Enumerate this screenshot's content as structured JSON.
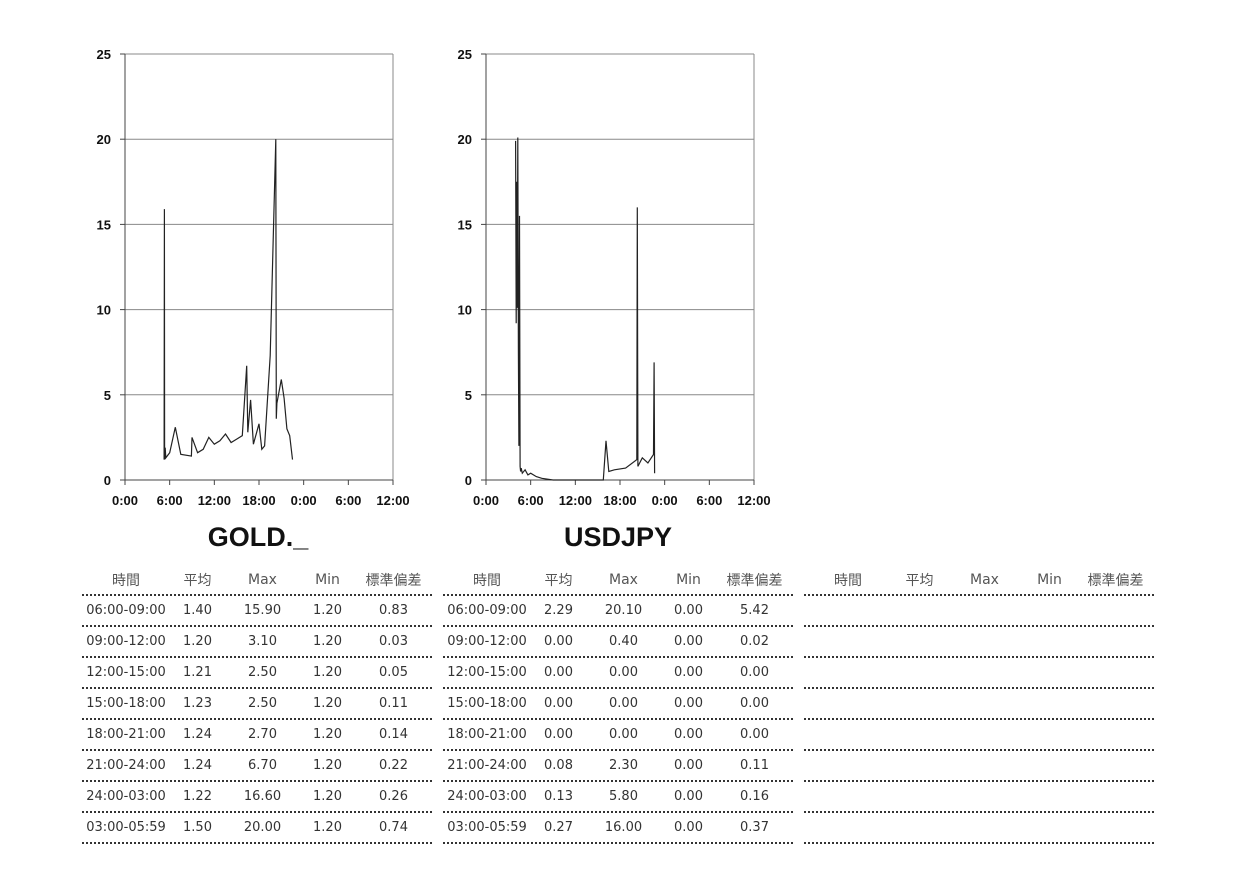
{
  "chart_data": [
    {
      "type": "line",
      "symbol": "GOLD._",
      "ylim": [
        0,
        25
      ],
      "yticks": [
        "0",
        "5",
        "10",
        "15",
        "20",
        "25"
      ],
      "xticks": [
        "0:00",
        "6:00",
        "12:00",
        "18:00",
        "0:00",
        "6:00",
        "12:00"
      ],
      "xlim_hours": [
        0,
        48
      ],
      "grid": true,
      "series": [
        {
          "x": [
            7.0,
            7.05,
            7.1,
            7.2,
            7.3,
            8.0,
            9.0,
            10.0,
            11.9,
            12.0,
            13.0,
            14.0,
            15.0,
            16.0,
            17.0,
            18.0,
            19.0,
            20.0,
            21.0,
            21.8,
            22.0,
            22.5,
            23.0,
            24.0,
            24.5,
            25.0,
            26.0,
            27.0,
            27.1,
            27.2,
            28.0,
            28.5,
            29.0,
            29.5,
            30.0
          ],
          "y": [
            1.2,
            15.9,
            1.2,
            1.9,
            1.3,
            1.6,
            3.1,
            1.5,
            1.4,
            2.5,
            1.6,
            1.8,
            2.5,
            2.1,
            2.3,
            2.7,
            2.2,
            2.4,
            2.6,
            6.7,
            2.8,
            4.7,
            2.1,
            3.3,
            1.8,
            2.0,
            7.3,
            20.0,
            3.6,
            4.5,
            5.9,
            4.8,
            3.0,
            2.6,
            1.2
          ]
        }
      ]
    },
    {
      "type": "line",
      "symbol": "USDJPY",
      "ylim": [
        0,
        25
      ],
      "yticks": [
        "0",
        "5",
        "10",
        "15",
        "20",
        "25"
      ],
      "xticks": [
        "0:00",
        "6:00",
        "12:00",
        "18:00",
        "0:00",
        "6:00",
        "12:00"
      ],
      "xlim_hours": [
        0,
        48
      ],
      "grid": true,
      "series": [
        {
          "x": [
            5.3,
            5.4,
            5.5,
            5.6,
            5.7,
            5.8,
            5.9,
            6.0,
            6.1,
            6.2,
            6.3,
            6.5,
            7.0,
            7.5,
            8.0,
            9.0,
            10.0,
            12.0,
            18.0,
            21.0,
            21.5,
            22.0,
            23.0,
            25.0,
            27.0,
            27.1,
            27.2,
            28.0,
            29.0,
            30.0,
            30.1,
            30.2
          ],
          "y": [
            19.9,
            9.2,
            17.5,
            10.1,
            20.1,
            7.5,
            2.0,
            15.5,
            0.8,
            0.5,
            0.7,
            0.4,
            0.6,
            0.3,
            0.4,
            0.2,
            0.1,
            0.0,
            0.0,
            0.0,
            2.3,
            0.5,
            0.6,
            0.7,
            1.2,
            16.0,
            0.8,
            1.3,
            1.0,
            1.5,
            6.9,
            0.4
          ]
        }
      ]
    }
  ],
  "tables": [
    {
      "headers": [
        "時間",
        "平均",
        "Max",
        "Min",
        "標準偏差"
      ],
      "rows": [
        [
          "06:00-09:00",
          "1.40",
          "15.90",
          "1.20",
          "0.83"
        ],
        [
          "09:00-12:00",
          "1.20",
          "3.10",
          "1.20",
          "0.03"
        ],
        [
          "12:00-15:00",
          "1.21",
          "2.50",
          "1.20",
          "0.05"
        ],
        [
          "15:00-18:00",
          "1.23",
          "2.50",
          "1.20",
          "0.11"
        ],
        [
          "18:00-21:00",
          "1.24",
          "2.70",
          "1.20",
          "0.14"
        ],
        [
          "21:00-24:00",
          "1.24",
          "6.70",
          "1.20",
          "0.22"
        ],
        [
          "24:00-03:00",
          "1.22",
          "16.60",
          "1.20",
          "0.26"
        ],
        [
          "03:00-05:59",
          "1.50",
          "20.00",
          "1.20",
          "0.74"
        ]
      ]
    },
    {
      "headers": [
        "時間",
        "平均",
        "Max",
        "Min",
        "標準偏差"
      ],
      "rows": [
        [
          "06:00-09:00",
          "2.29",
          "20.10",
          "0.00",
          "5.42"
        ],
        [
          "09:00-12:00",
          "0.00",
          "0.40",
          "0.00",
          "0.02"
        ],
        [
          "12:00-15:00",
          "0.00",
          "0.00",
          "0.00",
          "0.00"
        ],
        [
          "15:00-18:00",
          "0.00",
          "0.00",
          "0.00",
          "0.00"
        ],
        [
          "18:00-21:00",
          "0.00",
          "0.00",
          "0.00",
          "0.00"
        ],
        [
          "21:00-24:00",
          "0.08",
          "2.30",
          "0.00",
          "0.11"
        ],
        [
          "24:00-03:00",
          "0.13",
          "5.80",
          "0.00",
          "0.16"
        ],
        [
          "03:00-05:59",
          "0.27",
          "16.00",
          "0.00",
          "0.37"
        ]
      ]
    },
    {
      "headers": [
        "時間",
        "平均",
        "Max",
        "Min",
        "標準偏差"
      ],
      "rows": [
        [
          "",
          "",
          "",
          "",
          ""
        ],
        [
          "",
          "",
          "",
          "",
          ""
        ],
        [
          "",
          "",
          "",
          "",
          ""
        ],
        [
          "",
          "",
          "",
          "",
          ""
        ],
        [
          "",
          "",
          "",
          "",
          ""
        ],
        [
          "",
          "",
          "",
          "",
          ""
        ],
        [
          "",
          "",
          "",
          "",
          ""
        ],
        [
          "",
          "",
          "",
          "",
          ""
        ]
      ]
    }
  ]
}
